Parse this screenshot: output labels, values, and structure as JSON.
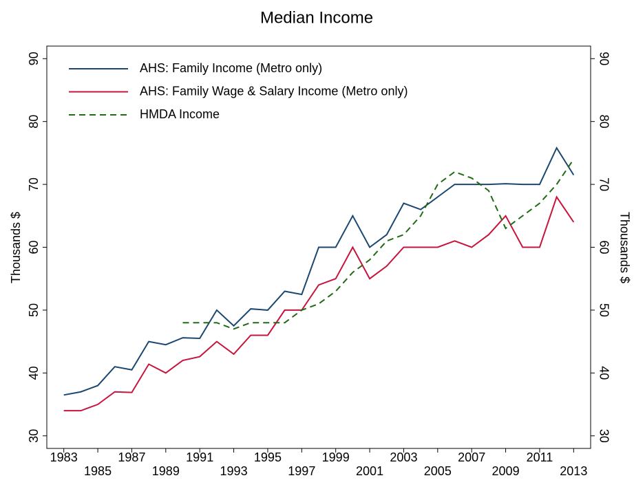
{
  "chart_data": {
    "type": "line",
    "title": "Median Income",
    "ylabel": "Thousands $",
    "y2label": "Thousands $",
    "x": [
      1983,
      1984,
      1985,
      1986,
      1987,
      1988,
      1989,
      1990,
      1991,
      1992,
      1993,
      1994,
      1995,
      1996,
      1997,
      1998,
      1999,
      2000,
      2001,
      2002,
      2003,
      2004,
      2005,
      2006,
      2007,
      2008,
      2009,
      2010,
      2011,
      2012,
      2013
    ],
    "series": [
      {
        "name": "AHS: Family Income (Metro only)",
        "color": "#1a476f",
        "style": "solid",
        "values": [
          36.5,
          37,
          38,
          41,
          40.5,
          45,
          44.5,
          45.6,
          45.5,
          50,
          47.5,
          50.2,
          50,
          53,
          52.5,
          60,
          60,
          65,
          60,
          62,
          67,
          66,
          68,
          70,
          70,
          70,
          70.1,
          70,
          70,
          75.8,
          71.5
        ]
      },
      {
        "name": "AHS: Family Wage & Salary Income (Metro only)",
        "color": "#c8143c",
        "style": "solid",
        "values": [
          34,
          34,
          35,
          37,
          36.9,
          41.4,
          40,
          42,
          42.6,
          45,
          43,
          46,
          46,
          50,
          50,
          54,
          55,
          60,
          55,
          57,
          60,
          60,
          60,
          61,
          60,
          62,
          65,
          60,
          60,
          68,
          64
        ]
      },
      {
        "name": "HMDA Income",
        "color": "#1f6a12",
        "style": "dashed",
        "values": [
          null,
          null,
          null,
          null,
          null,
          null,
          null,
          48,
          48,
          48,
          47,
          48,
          48,
          48,
          50,
          51,
          53,
          56,
          58,
          61,
          62,
          65,
          70,
          72,
          71,
          69,
          63,
          65,
          67,
          70,
          74
        ]
      }
    ],
    "xlim": [
      1982,
      2014
    ],
    "xticks": [
      1983,
      1985,
      1987,
      1989,
      1991,
      1993,
      1995,
      1997,
      1999,
      2001,
      2003,
      2005,
      2007,
      2009,
      2011,
      2013
    ],
    "ylim": [
      28,
      92
    ],
    "yticks": [
      30,
      40,
      50,
      60,
      70,
      80,
      90
    ],
    "y2lim": [
      28,
      92
    ],
    "y2ticks": [
      30,
      40,
      50,
      60,
      70,
      80,
      90
    ],
    "legend": "upper-left"
  }
}
